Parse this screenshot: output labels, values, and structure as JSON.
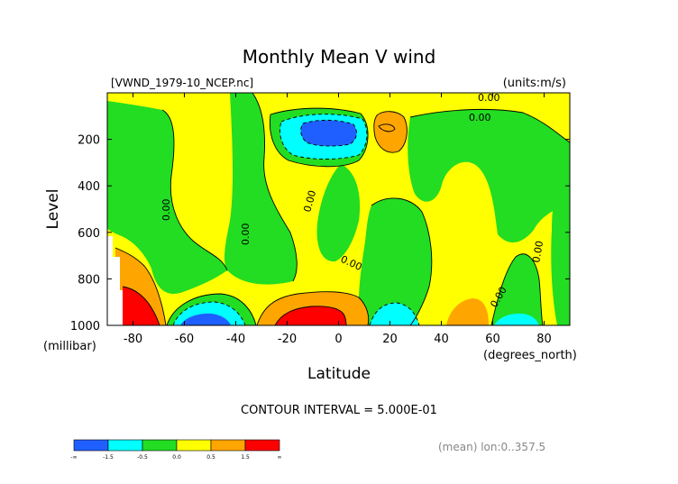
{
  "chart_data": {
    "type": "heatmap",
    "title": "Monthly Mean V wind",
    "file_label": "[VWND_1979-10_NCEP.nc]",
    "units_label": "(units:m/s)",
    "xlabel": "Latitude",
    "x_unit_label": "(degrees_north)",
    "ylabel": "Level",
    "y_unit_label": "(millibar)",
    "xlim": [
      -90,
      90
    ],
    "ylim": [
      1000,
      0
    ],
    "x_ticks": [
      -80,
      -60,
      -40,
      -20,
      0,
      20,
      40,
      60,
      80
    ],
    "x_tick_labels": [
      "-80",
      "-60",
      "-40",
      "-20",
      "0",
      "20",
      "40",
      "60",
      "80"
    ],
    "y_ticks": [
      200,
      400,
      600,
      800,
      1000
    ],
    "y_tick_labels": [
      "200",
      "400",
      "600",
      "800",
      "1000"
    ],
    "contour_interval_label": "CONTOUR INTERVAL = 5.000E-01",
    "contour_labels": [
      "0.00",
      "0.00",
      "0.00",
      "0.00",
      "0.00",
      "0.00",
      "0.00",
      "0.00"
    ],
    "footer_label": "(mean) lon:0..357.5",
    "colorbar": {
      "colors": [
        "#1f5fff",
        "#00ffff",
        "#22dd22",
        "#ffff00",
        "#ffa500",
        "#ff0000"
      ],
      "tick_labels": [
        "-∞",
        "-1.5",
        "-0.5",
        "0.0",
        "0.5",
        "1.5",
        "∞"
      ]
    },
    "fields": {
      "background": "#ffff00",
      "positive_strong": "#ff0000",
      "positive": "#ffa500",
      "negative": "#22dd22",
      "negative_mid": "#00ffff",
      "negative_strong": "#1f5fff"
    }
  }
}
